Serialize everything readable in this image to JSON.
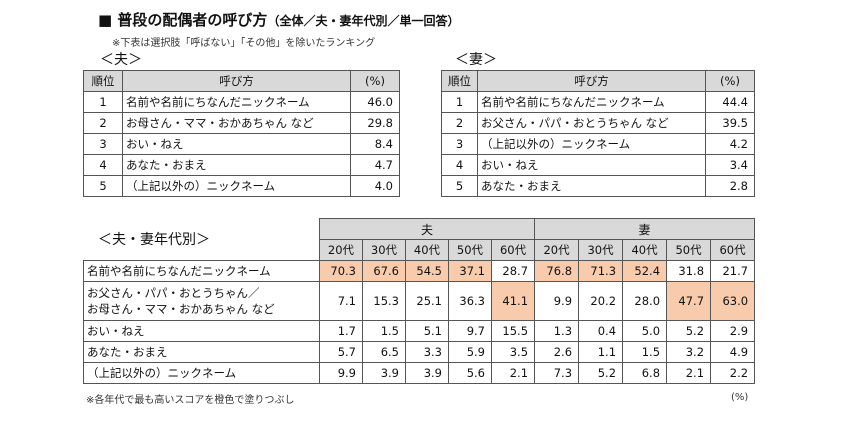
{
  "title": {
    "marker": "■",
    "main": "普段の配偶者の呼び方",
    "sub": "（全体／夫・妻年代別／単一回答）",
    "note": "※下表は選択肢「呼ばない」「その他」を除いたランキング"
  },
  "husband_table": {
    "label": "＜夫＞",
    "headers": {
      "rank": "順位",
      "name": "呼び方",
      "pct": "(%)"
    },
    "rows": [
      {
        "rank": "1",
        "name": "名前や名前にちなんだニックネーム",
        "pct": "46.0"
      },
      {
        "rank": "2",
        "name": "お母さん・ママ・おかあちゃん など",
        "pct": "29.8"
      },
      {
        "rank": "3",
        "name": "おい・ねえ",
        "pct": "8.4"
      },
      {
        "rank": "4",
        "name": "あなた・おまえ",
        "pct": "4.7"
      },
      {
        "rank": "5",
        "name": "（上記以外の）ニックネーム",
        "pct": "4.0"
      }
    ]
  },
  "wife_table": {
    "label": "＜妻＞",
    "headers": {
      "rank": "順位",
      "name": "呼び方",
      "pct": "(%)"
    },
    "rows": [
      {
        "rank": "1",
        "name": "名前や名前にちなんだニックネーム",
        "pct": "44.4"
      },
      {
        "rank": "2",
        "name": "お父さん・パパ・おとうちゃん など",
        "pct": "39.5"
      },
      {
        "rank": "3",
        "name": "（上記以外の）ニックネーム",
        "pct": "4.2"
      },
      {
        "rank": "4",
        "name": "おい・ねえ",
        "pct": "3.4"
      },
      {
        "rank": "5",
        "name": "あなた・おまえ",
        "pct": "2.8"
      }
    ]
  },
  "age_table": {
    "label": "＜夫・妻年代別＞",
    "group_husband": "夫",
    "group_wife": "妻",
    "age_headers": [
      "20代",
      "30代",
      "40代",
      "50代",
      "60代"
    ],
    "rows": [
      {
        "name": "名前や名前にちなんだニックネーム",
        "husband": [
          "70.3",
          "67.6",
          "54.5",
          "37.1",
          "28.7"
        ],
        "wife": [
          "76.8",
          "71.3",
          "52.4",
          "31.8",
          "21.7"
        ]
      },
      {
        "name_line1": "お父さん・パパ・おとうちゃん／",
        "name_line2": "お母さん・ママ・おかあちゃん など",
        "husband": [
          "7.1",
          "15.3",
          "25.1",
          "36.3",
          "41.1"
        ],
        "wife": [
          "9.9",
          "20.2",
          "28.0",
          "47.7",
          "63.0"
        ]
      },
      {
        "name": "おい・ねえ",
        "husband": [
          "1.7",
          "1.5",
          "5.1",
          "9.7",
          "15.5"
        ],
        "wife": [
          "1.3",
          "0.4",
          "5.0",
          "5.2",
          "2.9"
        ]
      },
      {
        "name": "あなた・おまえ",
        "husband": [
          "5.7",
          "6.5",
          "3.3",
          "5.9",
          "3.5"
        ],
        "wife": [
          "2.6",
          "1.1",
          "1.5",
          "3.2",
          "4.9"
        ]
      },
      {
        "name": "（上記以外の）ニックネーム",
        "husband": [
          "9.9",
          "3.9",
          "3.9",
          "5.6",
          "2.1"
        ],
        "wife": [
          "7.3",
          "5.2",
          "6.8",
          "2.1",
          "2.2"
        ]
      }
    ],
    "highlight_color": "#f8cbad",
    "footnote": "※各年代で最も高いスコアを橙色で塗りつぶし",
    "unit": "(%)"
  }
}
